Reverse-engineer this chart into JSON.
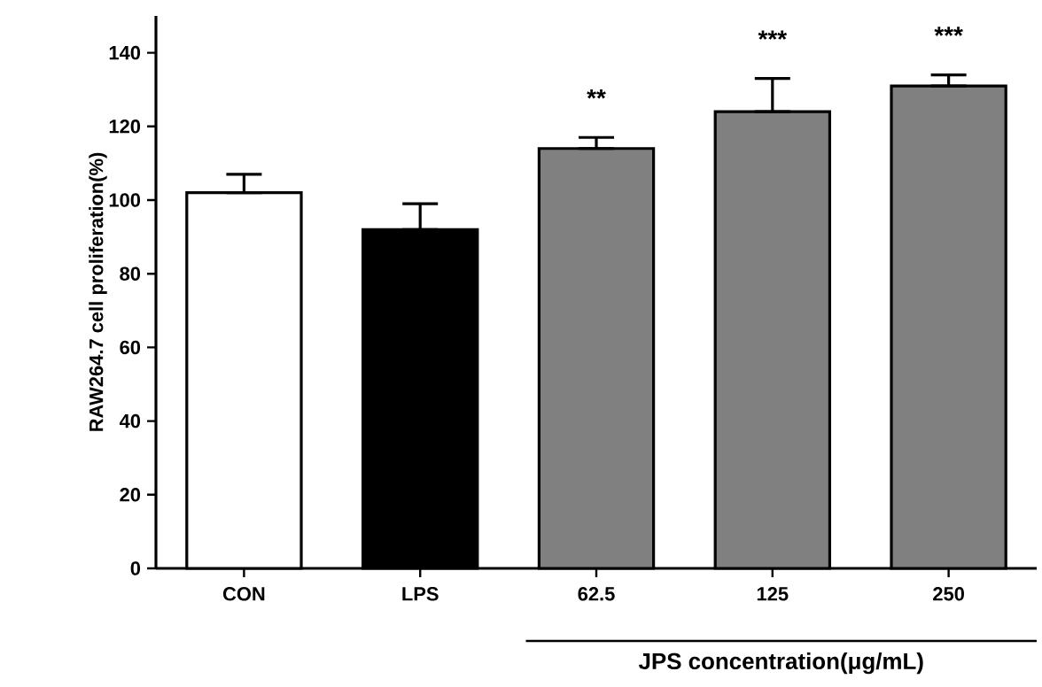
{
  "chart_data": {
    "type": "bar",
    "xlabel": "JPS concentration(μg/mL)",
    "ylabel": "RAW264.7 cell proliferation(%)",
    "categories": [
      "CON",
      "LPS",
      "62.5",
      "125",
      "250"
    ],
    "values": [
      102,
      92,
      114,
      124,
      131
    ],
    "errors": [
      [
        102,
        107
      ],
      [
        92,
        99
      ],
      [
        114,
        117
      ],
      [
        124,
        133
      ],
      [
        131,
        134
      ]
    ],
    "colors": [
      "#ffffff",
      "#000000",
      "#808080",
      "#808080",
      "#808080"
    ],
    "ylim": [
      0,
      150
    ],
    "yticks": [
      0,
      20,
      40,
      60,
      80,
      100,
      120,
      140
    ],
    "grid": false,
    "annotations": [
      "**",
      "***",
      "***"
    ]
  }
}
